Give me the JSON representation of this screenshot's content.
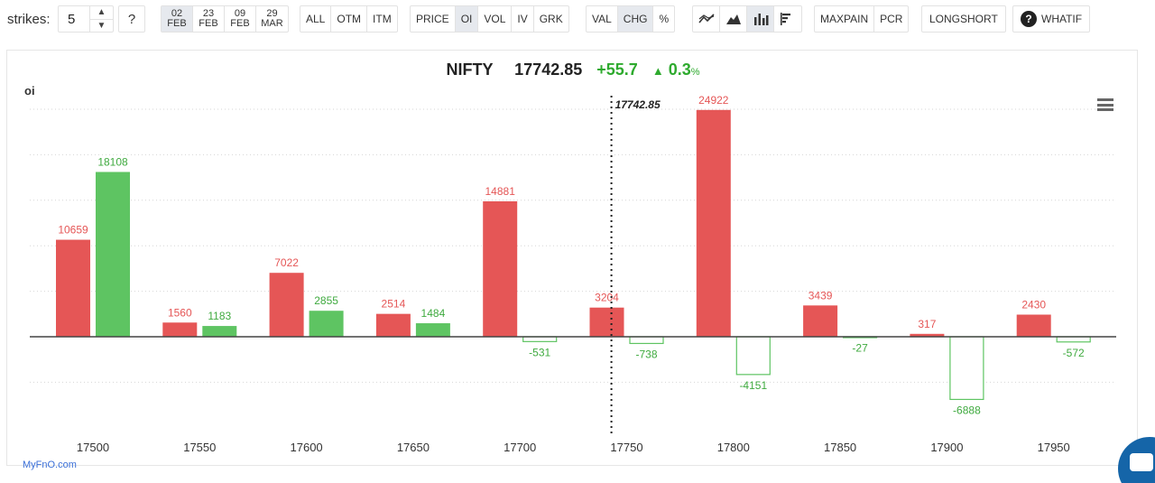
{
  "toolbar": {
    "strikes_label": "strikes:",
    "strikes_value": "5",
    "help_label": "?",
    "expiries": [
      {
        "day": "02",
        "month": "FEB",
        "active": true
      },
      {
        "day": "23",
        "month": "FEB",
        "active": false
      },
      {
        "day": "09",
        "month": "FEB",
        "active": false
      },
      {
        "day": "29",
        "month": "MAR",
        "active": false
      }
    ],
    "filter_modes": [
      "ALL",
      "OTM",
      "ITM"
    ],
    "data_modes": [
      "PRICE",
      "OI",
      "VOL",
      "IV",
      "GRK"
    ],
    "data_mode_active": "OI",
    "value_modes": [
      "VAL",
      "CHG",
      "%"
    ],
    "value_mode_active": "CHG",
    "chart_views": [
      {
        "icon": "line-chart-icon",
        "active": false
      },
      {
        "icon": "area-chart-icon",
        "active": false
      },
      {
        "icon": "bar-chart-icon",
        "active": true
      },
      {
        "icon": "horizontal-bar-chart-icon",
        "active": false
      }
    ],
    "maxpain_label": "MAXPAIN",
    "pcr_label": "PCR",
    "longshort_label": "LONGSHORT",
    "whatif_label": "WHATIF"
  },
  "header": {
    "symbol": "NIFTY",
    "price": "17742.85",
    "change": "+55.7",
    "change_pct": "0.3",
    "pct_symbol": "%"
  },
  "brand": "MyFnO.com",
  "colors": {
    "call": "#e55656",
    "put": "#5ec462",
    "spot_line": "#222222",
    "text_put": "#3faa3f"
  },
  "chart_data": {
    "type": "bar",
    "title": "",
    "xlabel": "",
    "ylabel": "oi",
    "categories": [
      "17500",
      "17550",
      "17600",
      "17650",
      "17700",
      "17750",
      "17800",
      "17850",
      "17900",
      "17950"
    ],
    "series": [
      {
        "values": [
          10659,
          1560,
          7022,
          2514,
          14881,
          3204,
          24922,
          3439,
          317,
          2430
        ]
      },
      {
        "values": [
          18108,
          1183,
          2855,
          1484,
          -531,
          -738,
          -4151,
          -27,
          -6888,
          -572
        ]
      }
    ],
    "ylim": [
      -10000,
      25000
    ],
    "grid": true,
    "spot_line": {
      "x": 17742.85,
      "label": "17742.85"
    }
  }
}
